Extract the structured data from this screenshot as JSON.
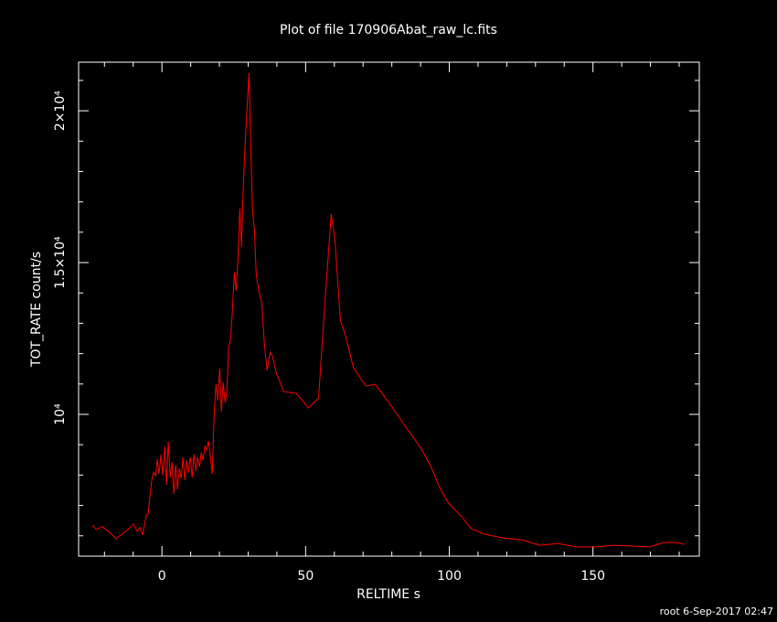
{
  "chart_data": {
    "type": "line",
    "title": "Plot of file 170906Abat_raw_lc.fits",
    "x_label": "RELTIME  s",
    "y_label": "TOT_RATE  count/s",
    "footer": "root  6-Sep-2017 02:47",
    "color": "#ff0000",
    "xlim": [
      -29,
      187
    ],
    "ylim": [
      5330,
      21600
    ],
    "xticks": [
      0,
      50,
      100,
      150
    ],
    "minor_xticks": [
      -20,
      -10,
      10,
      20,
      30,
      40,
      60,
      70,
      80,
      90,
      110,
      120,
      130,
      140,
      160,
      170,
      180
    ],
    "yticks": [
      {
        "value": 10000,
        "label": "10⁴"
      },
      {
        "value": 15000,
        "label": "1.5×10⁴"
      },
      {
        "value": 20000,
        "label": "2×10⁴"
      }
    ],
    "minor_yticks": [
      6000,
      7000,
      8000,
      9000,
      11000,
      12000,
      13000,
      14000,
      16000,
      17000,
      18000,
      19000,
      21000
    ],
    "x": [
      -24.2,
      -22.9,
      -20.7,
      -18.2,
      -15.9,
      -14,
      -11.8,
      -9.9,
      -8.6,
      -7.6,
      -6.7,
      -6.1,
      -5.4,
      -4.8,
      -4.1,
      -3.5,
      -2.9,
      -2.2,
      -1.6,
      -1,
      -0.3,
      0.3,
      1,
      1.6,
      2.2,
      2.9,
      3.5,
      4.1,
      4.8,
      5.4,
      6.1,
      6.7,
      7.3,
      8,
      8.6,
      9.2,
      9.9,
      10.5,
      11.1,
      11.8,
      12.4,
      13.1,
      13.7,
      14.3,
      15,
      15.6,
      16.2,
      16.9,
      17.5,
      18.2,
      18.8,
      19.4,
      20.1,
      20.7,
      21.3,
      22,
      22.6,
      23.2,
      23.9,
      24.5,
      25.2,
      25.8,
      26.4,
      27.1,
      27.7,
      28.3,
      29,
      29.6,
      30.3,
      30.9,
      31.5,
      32.2,
      32.8,
      33.8,
      34.7,
      35.7,
      36.6,
      37.6,
      38.5,
      39.8,
      42.4,
      46.8,
      51,
      54.5,
      56.7,
      58.9,
      60.2,
      62.1,
      64,
      66.6,
      71,
      74.2,
      79,
      83.8,
      90.1,
      93.3,
      96.5,
      99.7,
      104.5,
      107.6,
      112.4,
      118.8,
      125.2,
      131.5,
      137.9,
      144.3,
      150.6,
      157,
      163.4,
      169.7,
      174.5,
      179.3,
      181.8
    ],
    "values": [
      6360,
      6210,
      6300,
      6110,
      5900,
      6050,
      6210,
      6390,
      6140,
      6270,
      6020,
      6360,
      6690,
      6720,
      7380,
      7860,
      8100,
      7980,
      8520,
      8040,
      8680,
      7980,
      8950,
      7680,
      9100,
      7920,
      8430,
      7380,
      8340,
      7530,
      8220,
      7890,
      8580,
      7830,
      8490,
      8070,
      8580,
      7920,
      8680,
      8130,
      8580,
      8280,
      8740,
      8490,
      8950,
      8830,
      9130,
      8580,
      8040,
      10090,
      10990,
      10450,
      11510,
      10090,
      11050,
      10390,
      10750,
      12200,
      12500,
      13400,
      14670,
      14070,
      15060,
      16780,
      15510,
      17470,
      18980,
      20030,
      21240,
      18980,
      16720,
      16050,
      14610,
      14010,
      13710,
      12260,
      11450,
      12050,
      11900,
      11360,
      10750,
      10690,
      10210,
      10540,
      13640,
      16600,
      15750,
      13100,
      12560,
      11540,
      10930,
      10990,
      10390,
      9730,
      8890,
      8340,
      7620,
      7080,
      6600,
      6240,
      6050,
      5930,
      5870,
      5690,
      5750,
      5630,
      5630,
      5690,
      5660,
      5630,
      5780,
      5780,
      5720
    ]
  }
}
